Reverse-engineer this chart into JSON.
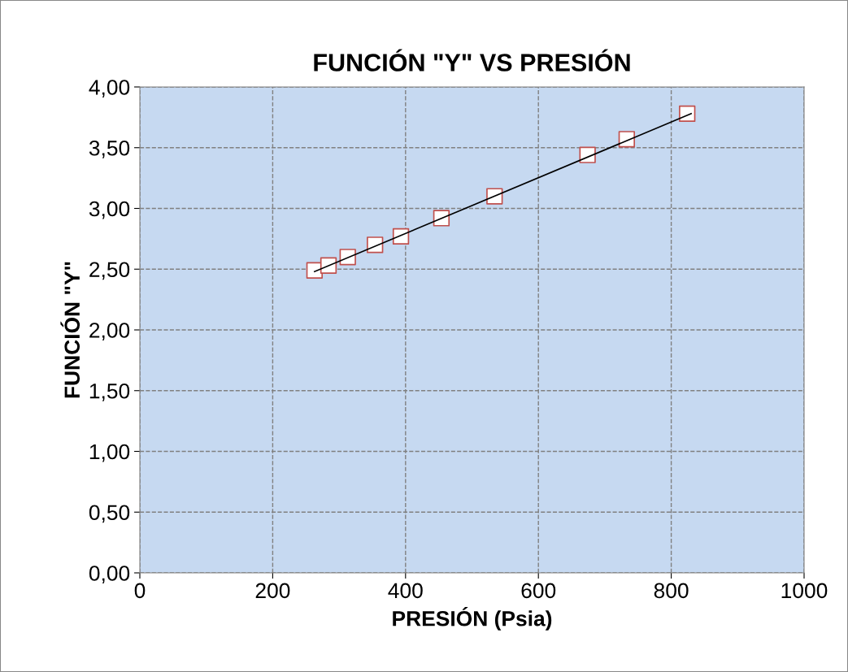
{
  "chart_data": {
    "type": "scatter",
    "title": "FUNCIÓN \"Y\" VS PRESIÓN",
    "xlabel": "PRESIÓN (Psia)",
    "ylabel": "FUNCIÓN \"Y\"",
    "series": [
      {
        "color": "#c0504d",
        "marker": "square",
        "x": [
          263,
          284,
          313,
          354,
          393,
          454,
          534,
          674,
          733,
          824
        ],
        "values": [
          2.49,
          2.53,
          2.6,
          2.7,
          2.77,
          2.92,
          3.1,
          3.44,
          3.57,
          3.78
        ]
      },
      {
        "type": "line",
        "color": "#000000",
        "marker": "none",
        "line_style": "solid",
        "x": [
          263,
          830
        ],
        "values": [
          2.48,
          3.78
        ]
      }
    ],
    "xlim": [
      0,
      1000
    ],
    "xticks": [
      0,
      200,
      400,
      600,
      800,
      1000
    ],
    "ylim": [
      0,
      4
    ],
    "yticks": [
      {
        "value": 0,
        "label": "0,00"
      },
      {
        "value": 0.5,
        "label": "0,50"
      },
      {
        "value": 1,
        "label": "1,00"
      },
      {
        "value": 1.5,
        "label": "1,50"
      },
      {
        "value": 2,
        "label": "2,00"
      },
      {
        "value": 2.5,
        "label": "2,50"
      },
      {
        "value": 3,
        "label": "3,00"
      },
      {
        "value": 3.5,
        "label": "3,50"
      },
      {
        "value": 4,
        "label": "4,00"
      }
    ],
    "grid": true,
    "legend": false
  }
}
